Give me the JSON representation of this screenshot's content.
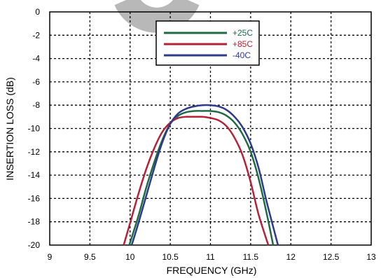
{
  "chart_data": {
    "type": "line",
    "title": "",
    "xlabel": "FREQUENCY (GHz)",
    "ylabel": "INSERTION LOSS (dB)",
    "xlim": [
      9,
      13
    ],
    "ylim": [
      -20,
      0
    ],
    "x_ticks": [
      "9",
      "9.5",
      "10",
      "10.5",
      "11",
      "11.5",
      "12",
      "12.5",
      "13"
    ],
    "y_ticks": [
      "0",
      "-2",
      "-4",
      "-6",
      "-8",
      "-10",
      "-12",
      "-14",
      "-16",
      "-18",
      "-20"
    ],
    "grid": true,
    "legend_position": "top-center",
    "watermark": "circular-logo",
    "series": [
      {
        "name": "+25C",
        "color": "#1e6b45",
        "x": [
          9.99,
          10.1,
          10.2,
          10.3,
          10.4,
          10.5,
          10.6,
          10.7,
          10.8,
          10.9,
          11.0,
          11.1,
          11.2,
          11.3,
          11.4,
          11.5,
          11.6,
          11.7,
          11.78
        ],
        "y": [
          -20,
          -17.6,
          -15.1,
          -12.9,
          -11.0,
          -9.6,
          -8.9,
          -8.6,
          -8.5,
          -8.5,
          -8.5,
          -8.6,
          -8.9,
          -9.5,
          -10.5,
          -12.0,
          -14.3,
          -17.3,
          -20
        ]
      },
      {
        "name": "+85C",
        "color": "#b52237",
        "x": [
          9.92,
          10.0,
          10.1,
          10.2,
          10.3,
          10.4,
          10.5,
          10.6,
          10.7,
          10.8,
          10.9,
          11.0,
          11.1,
          11.2,
          11.3,
          11.4,
          11.5,
          11.6,
          11.72
        ],
        "y": [
          -20,
          -18.1,
          -15.7,
          -13.5,
          -11.7,
          -10.3,
          -9.5,
          -9.1,
          -9.0,
          -9.0,
          -9.0,
          -9.1,
          -9.3,
          -9.8,
          -10.8,
          -12.3,
          -14.6,
          -17.4,
          -20
        ]
      },
      {
        "name": "-40C",
        "color": "#2e3a8c",
        "x": [
          10.02,
          10.1,
          10.2,
          10.3,
          10.4,
          10.5,
          10.6,
          10.7,
          10.8,
          10.9,
          11.0,
          11.1,
          11.2,
          11.3,
          11.4,
          11.5,
          11.6,
          11.7,
          11.84
        ],
        "y": [
          -20,
          -18.2,
          -15.8,
          -13.4,
          -11.2,
          -9.6,
          -8.7,
          -8.3,
          -8.1,
          -8.0,
          -8.0,
          -8.1,
          -8.4,
          -9.0,
          -9.9,
          -11.3,
          -13.4,
          -16.3,
          -20
        ]
      }
    ]
  }
}
